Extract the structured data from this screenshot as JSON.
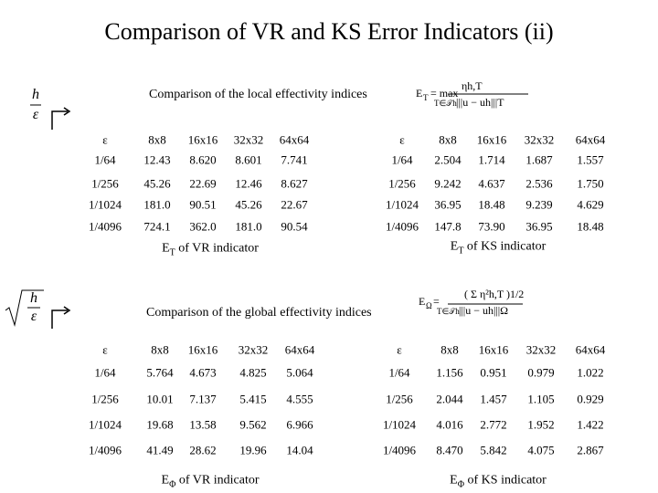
{
  "title": "Comparison of VR and KS Error Indicators (ii)",
  "sections": [
    {
      "icon": {
        "num": "h",
        "den": "ε"
      },
      "heading": "Comparison of the local effectivity indices",
      "formula": {
        "lhs": "E",
        "lhs_sub": "T",
        "op": "= max",
        "under": "T∈𝒯h",
        "num": "ηh,T",
        "den": "|||u − uh|||T"
      },
      "tables": [
        {
          "corner": "ε",
          "columns": [
            "8x8",
            "16x16",
            "32x32",
            "64x64"
          ],
          "rows": [
            [
              "1/64",
              "12.43",
              "8.620",
              "8.601",
              "7.741"
            ],
            [
              "1/256",
              "45.26",
              "22.69",
              "12.46",
              "8.627"
            ],
            [
              "1/1024",
              "181.0",
              "90.51",
              "45.26",
              "22.67"
            ],
            [
              "1/4096",
              "724.1",
              "362.0",
              "181.0",
              "90.54"
            ]
          ],
          "caption": {
            "symbol": "E",
            "sub": "T",
            "text": "of VR indicator"
          }
        },
        {
          "corner": "ε",
          "columns": [
            "8x8",
            "16x16",
            "32x32",
            "64x64"
          ],
          "rows": [
            [
              "1/64",
              "2.504",
              "1.714",
              "1.687",
              "1.557"
            ],
            [
              "1/256",
              "9.242",
              "4.637",
              "2.536",
              "1.750"
            ],
            [
              "1/1024",
              "36.95",
              "18.48",
              "9.239",
              "4.629"
            ],
            [
              "1/4096",
              "147.8",
              "73.90",
              "36.95",
              "18.48"
            ]
          ],
          "caption": {
            "symbol": "E",
            "sub": "T",
            "text": "of KS indicator"
          }
        }
      ]
    },
    {
      "icon": {
        "num": "h",
        "den": "ε"
      },
      "heading": "Comparison of the global effectivity indices",
      "formula": {
        "lhs": "E",
        "lhs_sub": "Ω",
        "op": "=",
        "under": "T∈𝒯h",
        "num": "( Σ η²h,T )1/2",
        "den": "|||u − uh|||Ω"
      },
      "tables": [
        {
          "corner": "ε",
          "columns": [
            "8x8",
            "16x16",
            "32x32",
            "64x64"
          ],
          "rows": [
            [
              "1/64",
              "5.764",
              "4.673",
              "4.825",
              "5.064"
            ],
            [
              "1/256",
              "10.01",
              "7.137",
              "5.415",
              "4.555"
            ],
            [
              "1/1024",
              "19.68",
              "13.58",
              "9.562",
              "6.966"
            ],
            [
              "1/4096",
              "41.49",
              "28.62",
              "19.96",
              "14.04"
            ]
          ],
          "caption": {
            "symbol": "E",
            "sub": "Φ",
            "text": "of VR indicator"
          }
        },
        {
          "corner": "ε",
          "columns": [
            "8x8",
            "16x16",
            "32x32",
            "64x64"
          ],
          "rows": [
            [
              "1/64",
              "1.156",
              "0.951",
              "0.979",
              "1.022"
            ],
            [
              "1/256",
              "2.044",
              "1.457",
              "1.105",
              "0.929"
            ],
            [
              "1/1024",
              "4.016",
              "2.772",
              "1.952",
              "1.422"
            ],
            [
              "1/4096",
              "8.470",
              "5.842",
              "4.075",
              "2.867"
            ]
          ],
          "caption": {
            "symbol": "E",
            "sub": "Φ",
            "text": "of KS indicator"
          }
        }
      ]
    }
  ]
}
